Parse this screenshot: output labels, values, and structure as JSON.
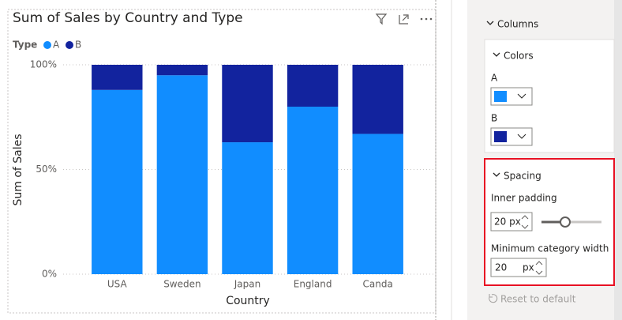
{
  "chart_data": {
    "type": "stacked-bar-100",
    "title": "Sum of Sales by Country and Type",
    "legend_title": "Type",
    "x_label": "Country",
    "y_label": "Sum of Sales",
    "categories": [
      "USA",
      "Sweden",
      "Japan",
      "England",
      "Canda"
    ],
    "series": [
      {
        "name": "A",
        "color": "#118dff",
        "values": [
          88,
          95,
          63,
          80,
          67
        ]
      },
      {
        "name": "B",
        "color": "#12239e",
        "values": [
          12,
          5,
          37,
          20,
          33
        ]
      }
    ],
    "ylim": [
      0,
      100
    ],
    "yticks": [
      {
        "value": 0,
        "label": "0%"
      },
      {
        "value": 50,
        "label": "50%"
      },
      {
        "value": 100,
        "label": "100%"
      }
    ],
    "grid": true
  },
  "pane": {
    "columns": "Columns",
    "colors": "Colors",
    "color_a": "A",
    "color_b": "B",
    "spacing": "Spacing",
    "inner_padding": "Inner padding",
    "inner_padding_value": "20 px",
    "min_width": "Minimum category width",
    "min_width_value": "20",
    "min_width_unit": "px",
    "reset": "Reset to default"
  }
}
